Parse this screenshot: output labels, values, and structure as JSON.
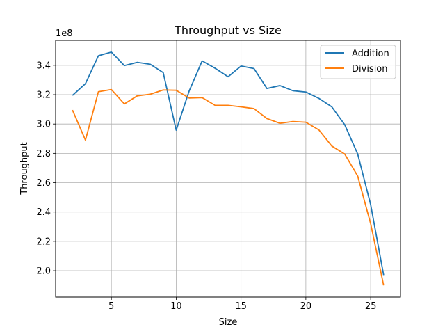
{
  "chart_data": {
    "type": "line",
    "title": "Throughput vs Size",
    "xlabel": "Size",
    "ylabel": "Throughput",
    "y_offset_label": "1e8",
    "xlim": [
      0.7,
      27.3
    ],
    "ylim": [
      1.82,
      3.57
    ],
    "x_ticks": [
      5,
      10,
      15,
      20,
      25
    ],
    "y_ticks": [
      2.0,
      2.2,
      2.4,
      2.6,
      2.8,
      3.0,
      3.2,
      3.4
    ],
    "grid": true,
    "legend_position": "top-right",
    "x": [
      2,
      3,
      4,
      5,
      6,
      7,
      8,
      9,
      10,
      11,
      12,
      13,
      14,
      15,
      16,
      17,
      18,
      19,
      20,
      21,
      22,
      23,
      24,
      25,
      26
    ],
    "series": [
      {
        "name": "Addition",
        "color": "#1f77b4",
        "values": [
          3.195,
          3.275,
          3.465,
          3.49,
          3.398,
          3.42,
          3.407,
          3.35,
          2.958,
          3.225,
          3.43,
          3.38,
          3.322,
          3.395,
          3.378,
          3.242,
          3.262,
          3.227,
          3.218,
          3.175,
          3.117,
          2.995,
          2.795,
          2.45,
          1.97
        ]
      },
      {
        "name": "Division",
        "color": "#ff7f0e",
        "values": [
          3.095,
          2.89,
          3.22,
          3.235,
          3.137,
          3.192,
          3.203,
          3.232,
          3.23,
          3.177,
          3.18,
          3.127,
          3.127,
          3.117,
          3.105,
          3.037,
          3.005,
          3.017,
          3.012,
          2.96,
          2.85,
          2.795,
          2.645,
          2.32,
          1.9
        ]
      }
    ]
  }
}
